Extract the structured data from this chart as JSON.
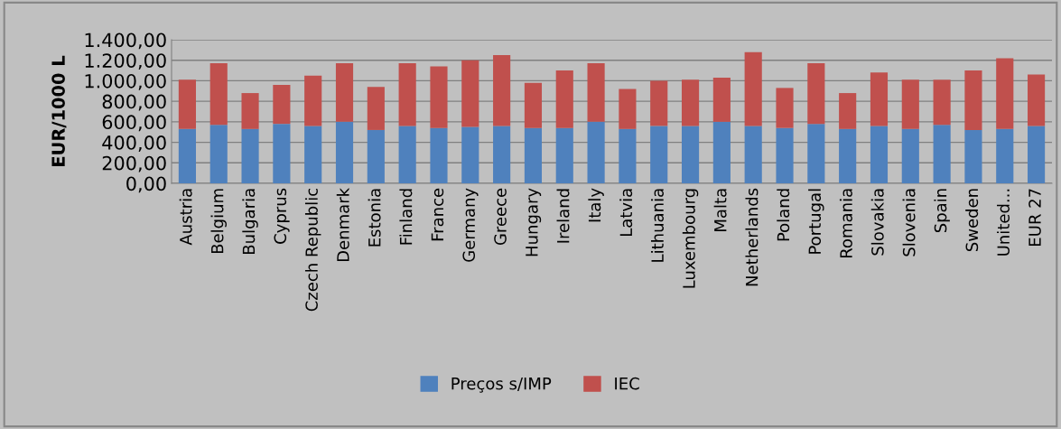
{
  "chart_data": {
    "type": "bar",
    "stacked": true,
    "ylabel": "EUR/1000 L",
    "categories": [
      "Austria",
      "Belgium",
      "Bulgaria",
      "Cyprus",
      "Czech Republic",
      "Denmark",
      "Estonia",
      "Finland",
      "France",
      "Germany",
      "Greece",
      "Hungary",
      "Ireland",
      "Italy",
      "Latvia",
      "Lithuania",
      "Luxembourg",
      "Malta",
      "Netherlands",
      "Poland",
      "Portugal",
      "Romania",
      "Slovakia",
      "Slovenia",
      "Spain",
      "Sweden",
      "United...",
      "EUR 27"
    ],
    "series": [
      {
        "name": "Preços s/IMP",
        "color": "#4f81bd",
        "values": [
          530,
          570,
          530,
          580,
          560,
          600,
          520,
          560,
          540,
          550,
          560,
          540,
          540,
          600,
          530,
          560,
          560,
          600,
          560,
          540,
          580,
          530,
          560,
          530,
          570,
          520,
          530,
          560
        ]
      },
      {
        "name": "IEC",
        "color": "#c0504d",
        "values": [
          480,
          600,
          350,
          380,
          490,
          570,
          420,
          610,
          600,
          650,
          690,
          440,
          560,
          570,
          390,
          440,
          450,
          430,
          720,
          390,
          590,
          350,
          520,
          480,
          440,
          580,
          690,
          500
        ]
      }
    ],
    "ylim": [
      0,
      1400
    ],
    "yticks": [
      {
        "value": 0,
        "label": "0,00"
      },
      {
        "value": 200,
        "label": "200,00"
      },
      {
        "value": 400,
        "label": "400,00"
      },
      {
        "value": 600,
        "label": "600,00"
      },
      {
        "value": 800,
        "label": "800,00"
      },
      {
        "value": 1000,
        "label": "1.000,00"
      },
      {
        "value": 1200,
        "label": "1.200,00"
      },
      {
        "value": 1400,
        "label": "1.400,00"
      }
    ],
    "grid": "y",
    "legend": "bottom"
  }
}
